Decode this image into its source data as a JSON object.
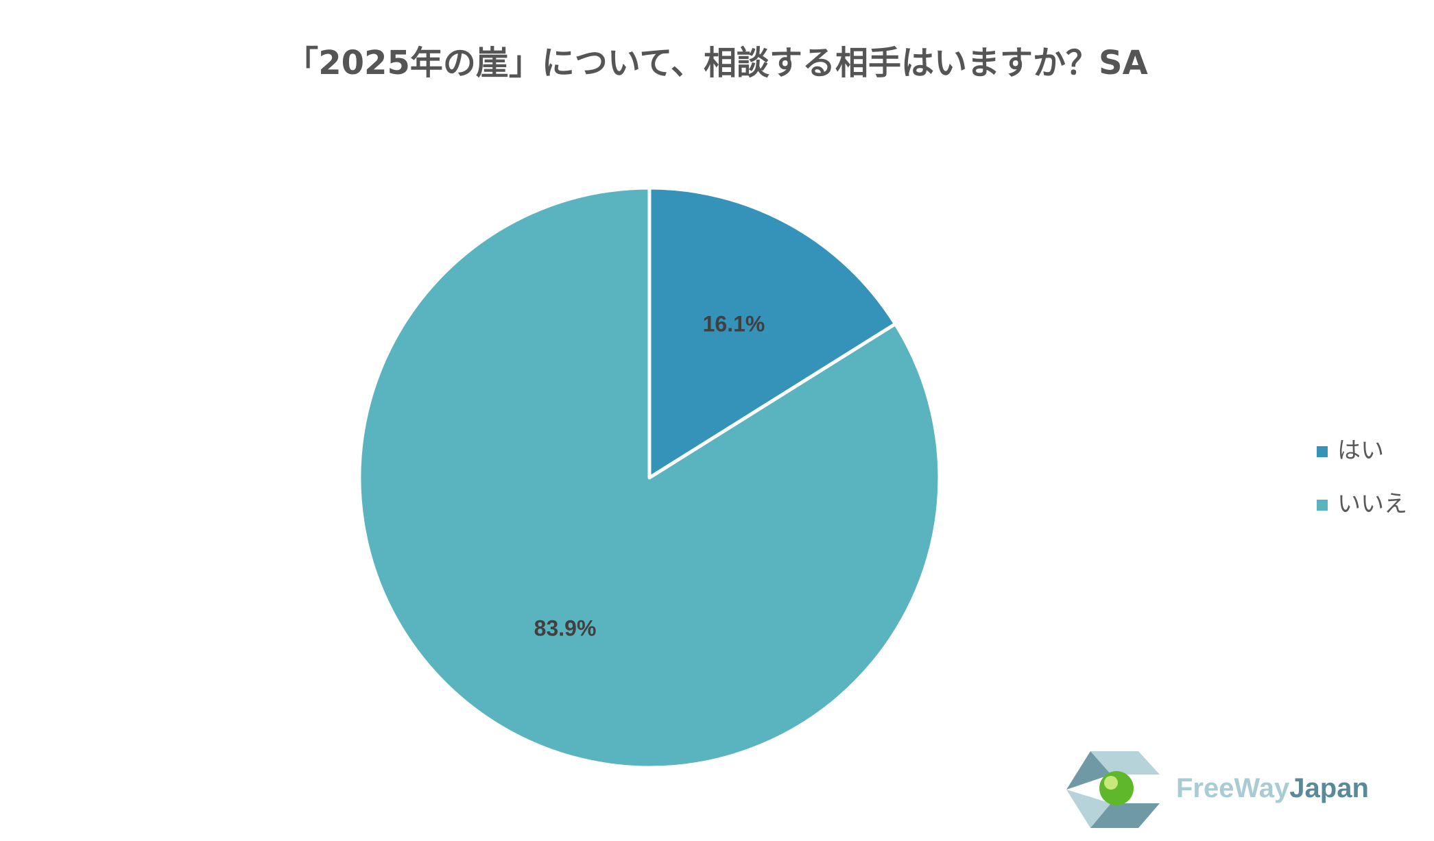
{
  "chart_data": {
    "type": "pie",
    "title": "「2025年の崖」について、相談する相手はいますか？SA",
    "categories": [
      "はい",
      "いいえ"
    ],
    "values": [
      16.1,
      83.9
    ],
    "value_labels": [
      "16.1%",
      "83.9%"
    ],
    "colors": [
      "#3592b8",
      "#5ab4bf"
    ],
    "legend": "right"
  },
  "logo": {
    "text_light": "FreeWay",
    "text_dark": "Japan"
  }
}
